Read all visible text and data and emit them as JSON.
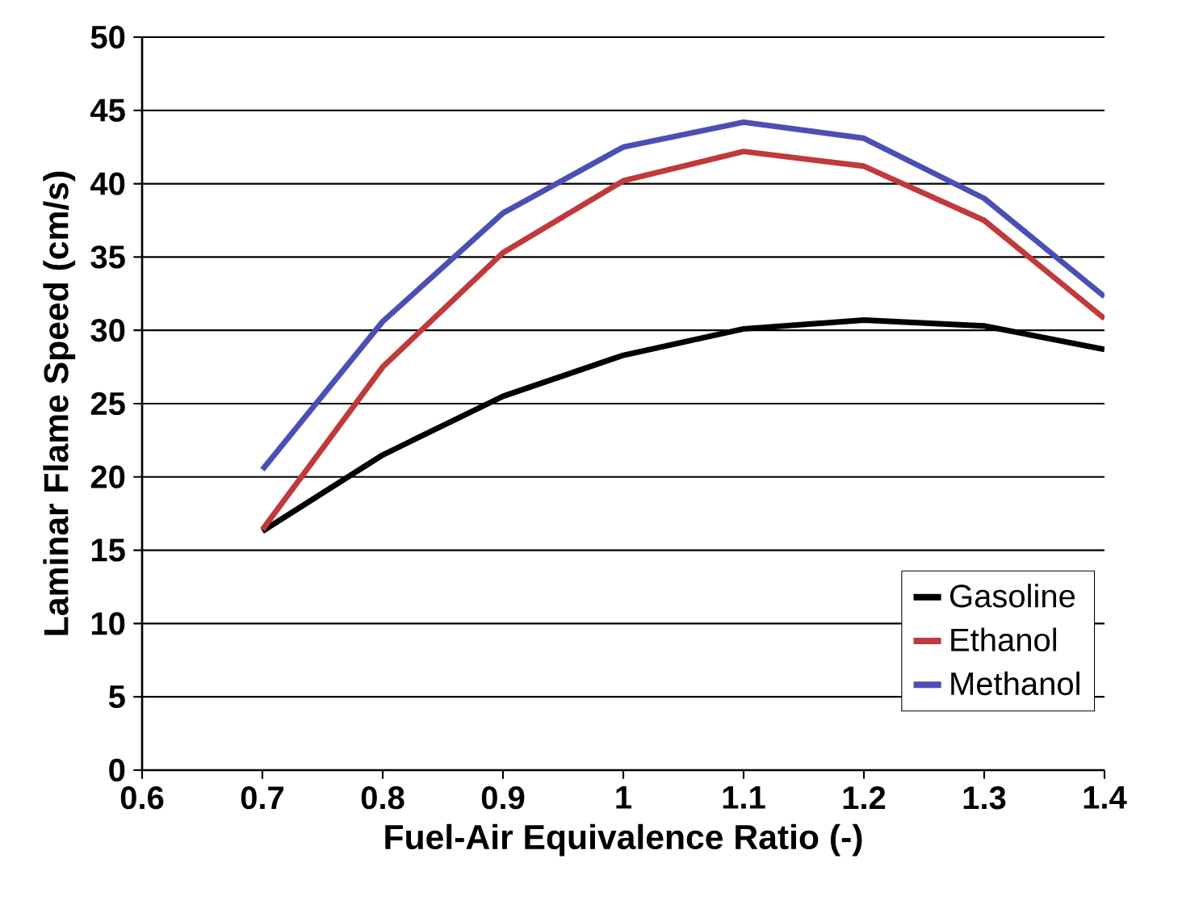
{
  "chart_data": {
    "type": "line",
    "xlabel": "Fuel-Air Equivalence Ratio (-)",
    "ylabel": "Laminar Flame Speed (cm/s)",
    "x": [
      0.7,
      0.8,
      0.9,
      1.0,
      1.1,
      1.2,
      1.3,
      1.4
    ],
    "series": [
      {
        "name": "Gasoline",
        "color": "#000000",
        "values": [
          16.3,
          21.5,
          25.5,
          28.3,
          30.1,
          30.7,
          30.3,
          28.7
        ]
      },
      {
        "name": "Ethanol",
        "color": "#c0393b",
        "values": [
          16.4,
          27.5,
          35.3,
          40.2,
          42.2,
          41.2,
          37.5,
          30.8
        ]
      },
      {
        "name": "Methanol",
        "color": "#4b4fb5",
        "values": [
          20.5,
          30.6,
          38.0,
          42.5,
          44.2,
          43.1,
          39.0,
          32.3
        ]
      }
    ],
    "xlim": [
      0.6,
      1.4
    ],
    "ylim": [
      0,
      50
    ],
    "xticks": [
      0.6,
      0.7,
      0.8,
      0.9,
      1,
      1.1,
      1.2,
      1.3,
      1.4
    ],
    "yticks": [
      0,
      5,
      10,
      15,
      20,
      25,
      30,
      35,
      40,
      45,
      50
    ],
    "grid": "y",
    "legend": "bottom right",
    "marker": "none",
    "line_style": "solid"
  }
}
